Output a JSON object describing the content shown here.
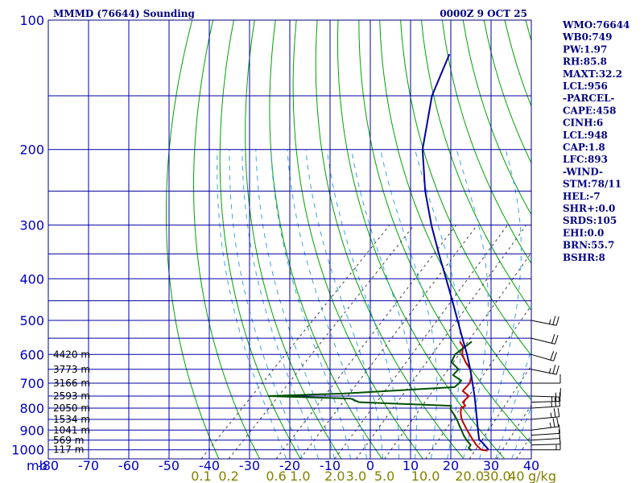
{
  "title_left": "MMMD (76644) Sounding",
  "title_right": "0000Z  9 OCT 25",
  "indices": [
    "WMO:76644",
    "WB0:749",
    "PW:1.97",
    "RH:85.8",
    "MAXT:32.2",
    "LCL:956",
    "-PARCEL-",
    "CAPE:458",
    "CINH:6",
    "LCL:948",
    "CAP:1.8",
    "LFC:893",
    "-WIND-",
    "STM:78/11",
    "HEL:-7",
    "SHR+:0.0",
    "SRDS:105",
    "EHI:0.0",
    "BRN:55.7",
    "BSHR:8"
  ],
  "colors": {
    "frame": "#000080",
    "isobar": "#0000a0",
    "isotherm": "#0000a0",
    "dry_adiabat": "#00a000",
    "moist_adiabat": "#40a0e0",
    "mixing_ratio": "#404040",
    "temperature": "#c00000",
    "dewpoint": "#005000",
    "parcel": "#0000a0",
    "wind": "#000000"
  },
  "chart_data": {
    "type": "skew-t log-p",
    "pressure_unit_label": "mb",
    "pressure_range": [
      1050,
      100
    ],
    "temperature_range": [
      -80,
      40
    ],
    "pressure_ticks": [
      100,
      200,
      300,
      400,
      500,
      600,
      700,
      800,
      900,
      1000
    ],
    "temperature_ticks": [
      -80,
      -70,
      -60,
      -50,
      -40,
      -30,
      -20,
      -10,
      0,
      10,
      20,
      30,
      40
    ],
    "isobars": [
      100,
      150,
      200,
      250,
      300,
      350,
      400,
      450,
      500,
      550,
      600,
      650,
      700,
      750,
      800,
      850,
      900,
      950,
      1000,
      1050
    ],
    "mixing_ratio_unit": "g/kg",
    "mixing_ratio_labels": [
      "0.1",
      "0.2",
      "0.6",
      "1.0",
      "2.0",
      "3.0",
      "5.0",
      "10.0",
      "20.0",
      "30.0",
      "40"
    ],
    "height_labels": [
      {
        "p": 600,
        "text": "4420 m"
      },
      {
        "p": 650,
        "text": "3773 m"
      },
      {
        "p": 700,
        "text": "3166 m"
      },
      {
        "p": 750,
        "text": "2593 m"
      },
      {
        "p": 800,
        "text": "2050 m"
      },
      {
        "p": 850,
        "text": "1534 m"
      },
      {
        "p": 900,
        "text": "1041 m"
      },
      {
        "p": 950,
        "text": "569 m"
      },
      {
        "p": 1000,
        "text": "117 m"
      }
    ],
    "series": [
      {
        "name": "temperature",
        "points": [
          [
            1005,
            28.0
          ],
          [
            1000,
            26.2
          ],
          [
            975,
            23.8
          ],
          [
            950,
            21.8
          ],
          [
            925,
            19.8
          ],
          [
            900,
            17.8
          ],
          [
            875,
            15.8
          ],
          [
            850,
            13.8
          ],
          [
            825,
            12.2
          ],
          [
            800,
            10.8
          ],
          [
            790,
            11.3
          ],
          [
            775,
            9.8
          ],
          [
            750,
            9.8
          ],
          [
            730,
            7.0
          ],
          [
            700,
            6.8
          ],
          [
            675,
            5.5
          ],
          [
            650,
            3.5
          ],
          [
            625,
            0.5
          ],
          [
            600,
            -2.2
          ],
          [
            575,
            -4.0
          ],
          [
            560,
            -6.0
          ]
        ]
      },
      {
        "name": "dewpoint",
        "points": [
          [
            1005,
            24.0
          ],
          [
            990,
            22.6
          ],
          [
            975,
            22.4
          ],
          [
            950,
            20.2
          ],
          [
            925,
            18.2
          ],
          [
            900,
            16.4
          ],
          [
            875,
            14.5
          ],
          [
            850,
            12.6
          ],
          [
            825,
            10.4
          ],
          [
            805,
            8.5
          ],
          [
            790,
            7.8
          ],
          [
            775,
            -16.0
          ],
          [
            760,
            -19.0
          ],
          [
            750,
            -40.0
          ],
          [
            740,
            -22.0
          ],
          [
            715,
            4.0
          ],
          [
            700,
            4.2
          ],
          [
            690,
            4.0
          ],
          [
            670,
            0.6
          ],
          [
            650,
            0.6
          ],
          [
            625,
            -3.0
          ],
          [
            600,
            -4.0
          ],
          [
            560,
            -3.0
          ]
        ]
      },
      {
        "name": "parcel",
        "points": [
          [
            1000,
            28
          ],
          [
            960,
            24.5
          ],
          [
            948,
            23.2
          ],
          [
            900,
            20.5
          ],
          [
            850,
            17.6
          ],
          [
            800,
            14.5
          ],
          [
            750,
            11.2
          ],
          [
            700,
            7.5
          ],
          [
            650,
            3.5
          ],
          [
            600,
            -1.0
          ],
          [
            550,
            -6.2
          ],
          [
            500,
            -11.8
          ],
          [
            450,
            -18.0
          ],
          [
            400,
            -25.0
          ],
          [
            350,
            -33.0
          ],
          [
            300,
            -42.0
          ],
          [
            250,
            -52.0
          ],
          [
            200,
            -63.0
          ],
          [
            150,
            -74.0
          ],
          [
            120,
            -80.0
          ]
        ]
      }
    ],
    "wind_profile": [
      {
        "p": 1000,
        "dir": 270,
        "spd": 5
      },
      {
        "p": 975,
        "dir": 275,
        "spd": 10
      },
      {
        "p": 950,
        "dir": 280,
        "spd": 10
      },
      {
        "p": 925,
        "dir": 280,
        "spd": 10
      },
      {
        "p": 900,
        "dir": 290,
        "spd": 15
      },
      {
        "p": 850,
        "dir": 285,
        "spd": 15
      },
      {
        "p": 800,
        "dir": 280,
        "spd": 15
      },
      {
        "p": 775,
        "dir": 275,
        "spd": 15
      },
      {
        "p": 750,
        "dir": 265,
        "spd": 10
      },
      {
        "p": 700,
        "dir": 270,
        "spd": 10
      },
      {
        "p": 650,
        "dir": 240,
        "spd": 15
      },
      {
        "p": 600,
        "dir": 230,
        "spd": 20
      },
      {
        "p": 550,
        "dir": 235,
        "spd": 20
      },
      {
        "p": 500,
        "dir": 240,
        "spd": 15
      }
    ]
  }
}
